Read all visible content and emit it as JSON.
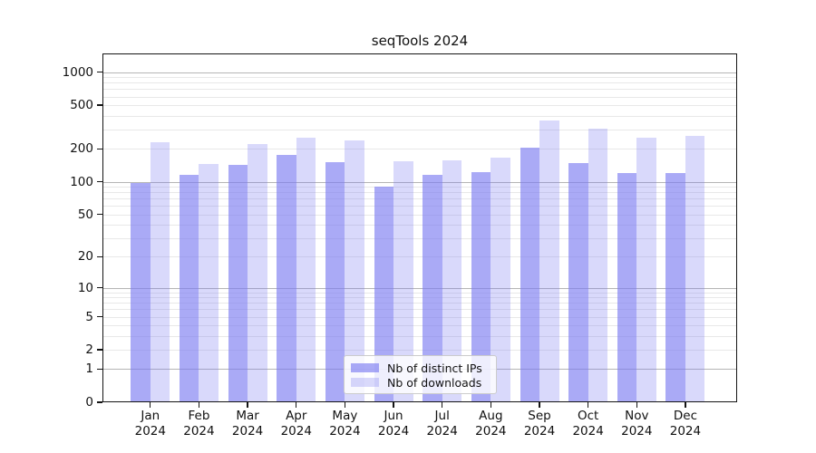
{
  "chart_data": {
    "type": "bar",
    "title": "seqTools 2024",
    "scale": "log1p",
    "grid": true,
    "legend_position": "lower center",
    "categories": [
      "Jan",
      "Feb",
      "Mar",
      "Apr",
      "May",
      "Jun",
      "Jul",
      "Aug",
      "Sep",
      "Oct",
      "Nov",
      "Dec"
    ],
    "year_label": "2024",
    "series": [
      {
        "name": "Nb of distinct IPs",
        "color": "rgba(120,120,240,0.63)",
        "values": [
          97,
          116,
          143,
          175,
          150,
          91,
          115,
          122,
          205,
          149,
          121,
          121
        ]
      },
      {
        "name": "Nb of downloads",
        "color": "rgba(120,120,240,0.28)",
        "values": [
          230,
          145,
          222,
          255,
          240,
          155,
          156,
          167,
          364,
          306,
          255,
          264
        ]
      }
    ],
    "y_ticks": [
      0,
      1,
      2,
      5,
      10,
      20,
      50,
      100,
      200,
      500,
      1000
    ],
    "ylim": [
      0,
      1480
    ]
  }
}
